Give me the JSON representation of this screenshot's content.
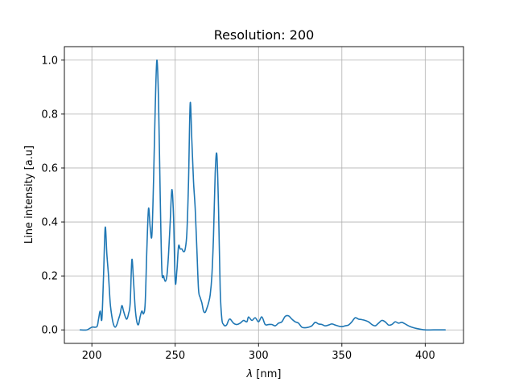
{
  "chart_data": {
    "type": "line",
    "title": "Resolution: 200",
    "xlabel_symbol": "λ",
    "xlabel_unit": " [nm]",
    "ylabel": "Line intensity [a.u]",
    "xlim": [
      183.5,
      423
    ],
    "ylim": [
      -0.05,
      1.05
    ],
    "xticks": [
      200,
      250,
      300,
      350,
      400
    ],
    "yticks": [
      0.0,
      0.2,
      0.4,
      0.6,
      0.8,
      1.0
    ],
    "xtick_labels": [
      "200",
      "250",
      "300",
      "350",
      "400"
    ],
    "ytick_labels": [
      "0.0",
      "0.2",
      "0.4",
      "0.6",
      "0.8",
      "1.0"
    ],
    "grid": true,
    "line_color": "#1f77b4",
    "series": [
      {
        "x": [
          193,
          197,
          200,
          203,
          204,
          205,
          206,
          207,
          208,
          209,
          210,
          211,
          212,
          213,
          214,
          215,
          216,
          217,
          218,
          219,
          220,
          221,
          222,
          223,
          224,
          225,
          226,
          227,
          228,
          229,
          230,
          231,
          232,
          233,
          234,
          235,
          236,
          237,
          238,
          239,
          240,
          241,
          242,
          243,
          244,
          245,
          246,
          247,
          248,
          249,
          250,
          251,
          252,
          253,
          254,
          255,
          256,
          257,
          258,
          259,
          260,
          261,
          262,
          263,
          264,
          265,
          266,
          267,
          268,
          269,
          270,
          271,
          272,
          273,
          274,
          275,
          276,
          277,
          278,
          279,
          280,
          281,
          282,
          283,
          285,
          287,
          289,
          291,
          293,
          294,
          296,
          298,
          300,
          302,
          304,
          306,
          308,
          310,
          312,
          314,
          316,
          318,
          320,
          322,
          324,
          326,
          328,
          330,
          332,
          334,
          336,
          338,
          340,
          342,
          344,
          346,
          348,
          350,
          352,
          354,
          356,
          358,
          360,
          362,
          364,
          366,
          368,
          370,
          372,
          374,
          376,
          378,
          380,
          382,
          384,
          386,
          388,
          390,
          392,
          395,
          400,
          405,
          412
        ],
        "y": [
          0.0,
          0.0,
          0.01,
          0.012,
          0.04,
          0.07,
          0.04,
          0.2,
          0.38,
          0.28,
          0.2,
          0.1,
          0.05,
          0.02,
          0.01,
          0.02,
          0.04,
          0.06,
          0.09,
          0.07,
          0.05,
          0.04,
          0.06,
          0.1,
          0.26,
          0.18,
          0.08,
          0.03,
          0.02,
          0.05,
          0.07,
          0.06,
          0.1,
          0.3,
          0.45,
          0.38,
          0.35,
          0.55,
          0.82,
          1.0,
          0.85,
          0.5,
          0.22,
          0.2,
          0.18,
          0.2,
          0.28,
          0.4,
          0.52,
          0.42,
          0.18,
          0.22,
          0.31,
          0.3,
          0.3,
          0.29,
          0.3,
          0.36,
          0.55,
          0.84,
          0.7,
          0.55,
          0.45,
          0.3,
          0.15,
          0.12,
          0.1,
          0.07,
          0.065,
          0.08,
          0.1,
          0.13,
          0.2,
          0.35,
          0.58,
          0.65,
          0.45,
          0.15,
          0.04,
          0.02,
          0.015,
          0.02,
          0.035,
          0.04,
          0.025,
          0.02,
          0.025,
          0.035,
          0.03,
          0.048,
          0.035,
          0.045,
          0.03,
          0.048,
          0.02,
          0.02,
          0.02,
          0.015,
          0.025,
          0.03,
          0.05,
          0.052,
          0.04,
          0.03,
          0.025,
          0.01,
          0.008,
          0.01,
          0.015,
          0.028,
          0.022,
          0.02,
          0.015,
          0.018,
          0.022,
          0.018,
          0.014,
          0.012,
          0.015,
          0.018,
          0.03,
          0.045,
          0.04,
          0.038,
          0.035,
          0.03,
          0.02,
          0.015,
          0.025,
          0.035,
          0.03,
          0.018,
          0.02,
          0.03,
          0.025,
          0.028,
          0.022,
          0.015,
          0.01,
          0.005,
          0.0,
          0.0,
          0.0
        ]
      }
    ]
  }
}
